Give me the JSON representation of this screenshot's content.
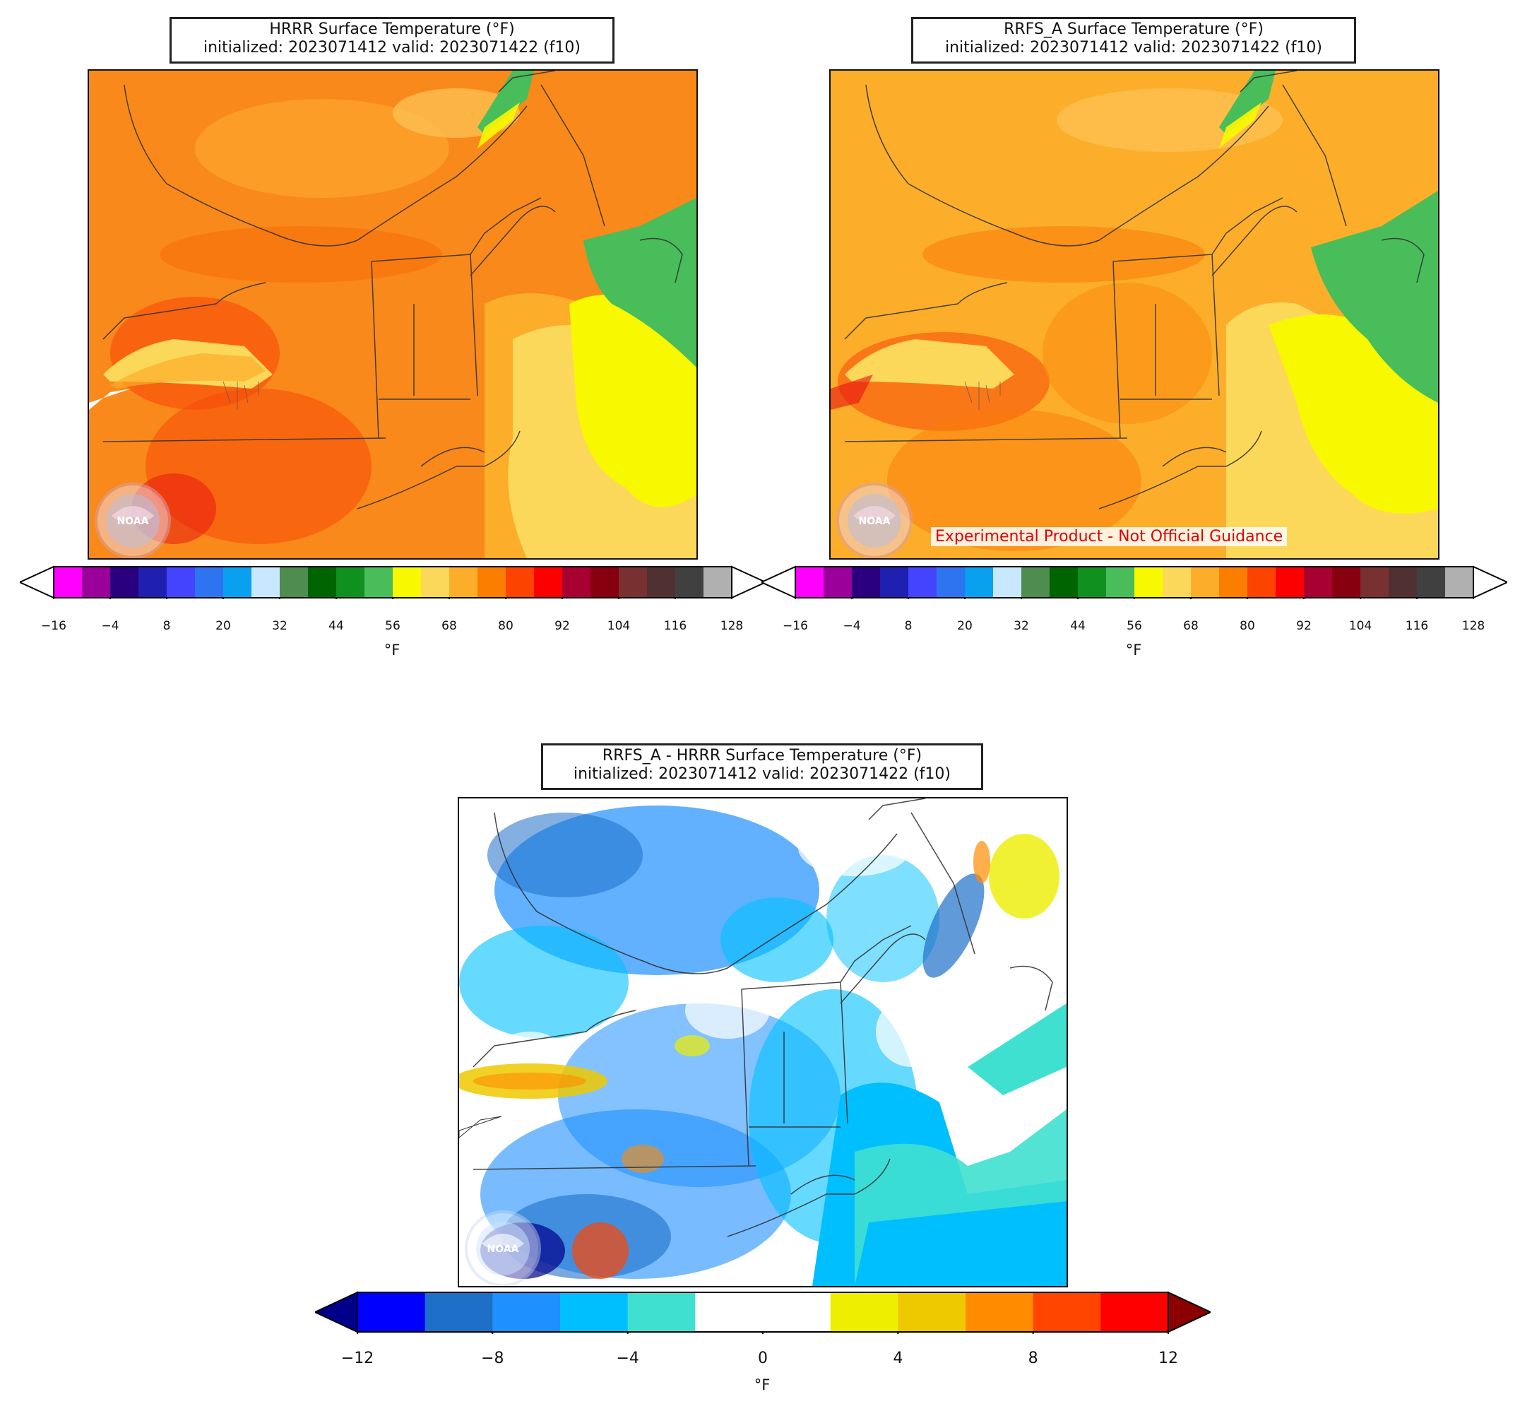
{
  "panels": [
    {
      "id": "hrrr",
      "title_line1": "HRRR Surface Temperature (°F)",
      "title_line2": "initialized: 2023071412 valid: 2023071422 (f10)"
    },
    {
      "id": "rrfs",
      "title_line1": "RRFS_A Surface Temperature (°F)",
      "title_line2": "initialized: 2023071412 valid: 2023071422 (f10)",
      "banner": "Experimental Product - Not Official Guidance"
    },
    {
      "id": "diff",
      "title_line1": "RRFS_A - HRRR Surface Temperature (°F)",
      "title_line2": "initialized: 2023071412 valid: 2023071422 (f10)"
    }
  ],
  "logo_text": "NOAA",
  "temp_colorbar": {
    "unit": "°F",
    "ticks": [
      "−16",
      "−4",
      "8",
      "20",
      "32",
      "44",
      "56",
      "68",
      "80",
      "92",
      "104",
      "116",
      "128"
    ],
    "colors": [
      "#ff00ff",
      "#9b009b",
      "#2a0080",
      "#2020b0",
      "#4444ff",
      "#2e74f0",
      "#0aa0f0",
      "#c8e8ff",
      "#4e8c50",
      "#006400",
      "#10901e",
      "#48bd5a",
      "#f8f800",
      "#fcd85a",
      "#fcae2a",
      "#fc7e00",
      "#fc4400",
      "#fc0000",
      "#a80030",
      "#880010",
      "#783030",
      "#503030",
      "#404040",
      "#b0b0b0"
    ]
  },
  "diff_colorbar": {
    "unit": "°F",
    "ticks": [
      "−12",
      "−8",
      "−4",
      "0",
      "4",
      "8",
      "12"
    ],
    "colors": [
      "#0000ff",
      "#1e6fc8",
      "#1e90ff",
      "#00bfff",
      "#40e0d0",
      "#ffffff",
      "#ffffff",
      "#eeee00",
      "#eec900",
      "#ff8c00",
      "#ff4500",
      "#ff0000"
    ],
    "under_color": "#00008b",
    "over_color": "#8b0000"
  }
}
